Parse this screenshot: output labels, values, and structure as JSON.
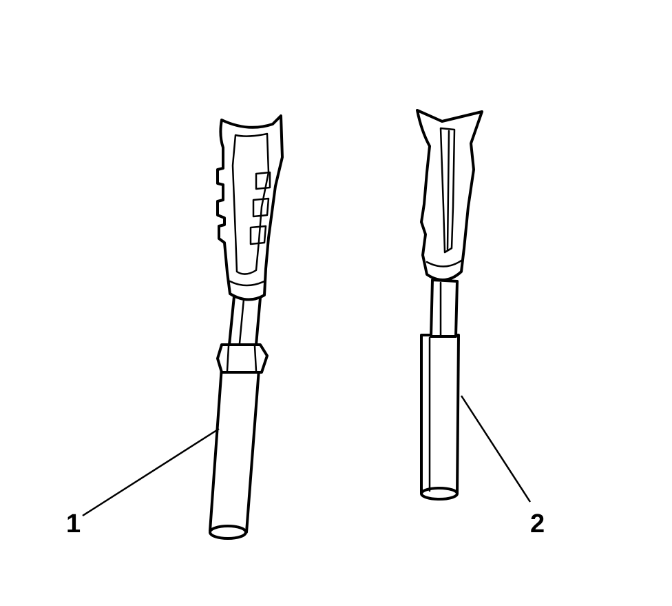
{
  "diagram": {
    "callouts": [
      {
        "id": "1",
        "label": "1"
      },
      {
        "id": "2",
        "label": "2"
      }
    ],
    "colors": {
      "ink": "#000000",
      "background": "#ffffff"
    }
  }
}
